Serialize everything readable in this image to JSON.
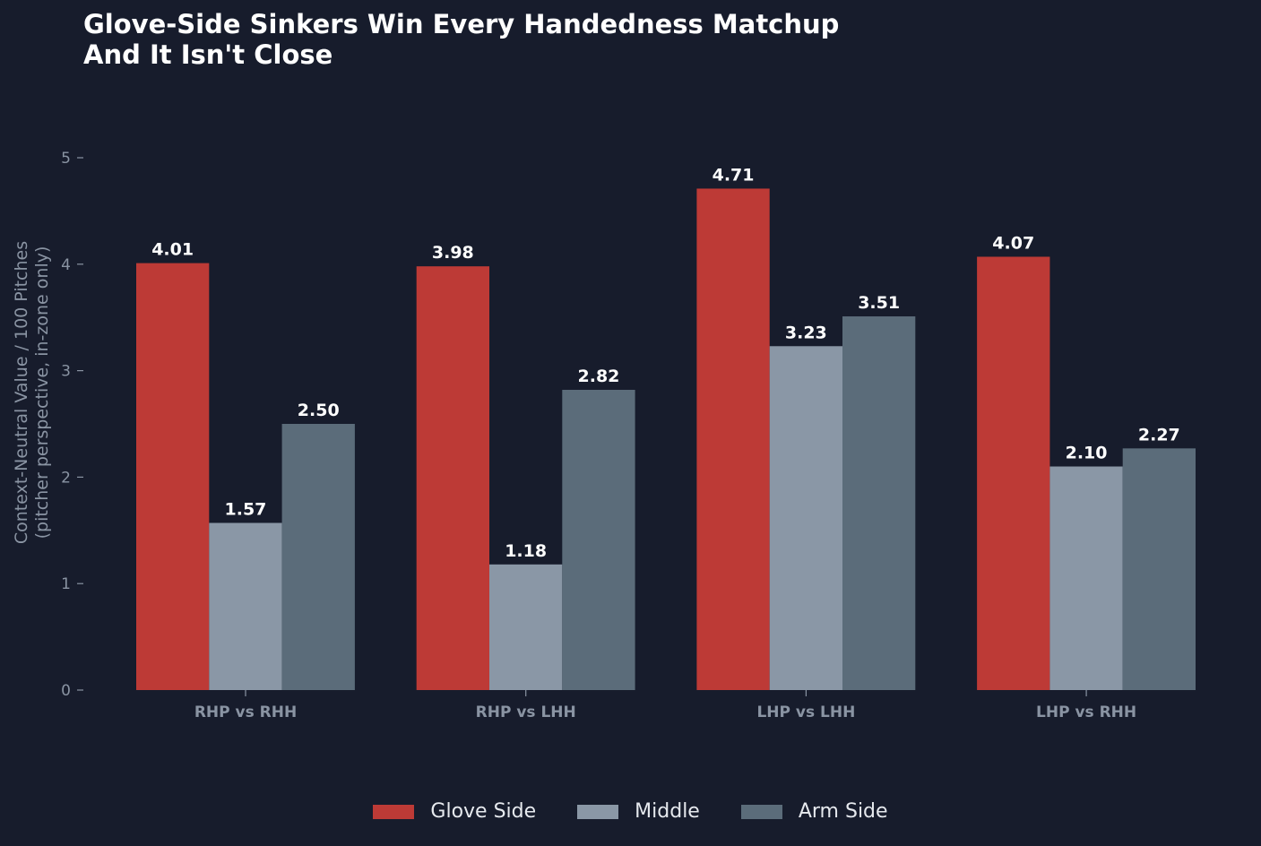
{
  "chart_data": {
    "type": "bar",
    "title_lines": [
      "Glove-Side Sinkers Win Every Handedness Matchup",
      "And It Isn't Close"
    ],
    "ylabel_lines": [
      "Context-Neutral Value / 100 Pitches",
      "(pitcher perspective, in-zone only)"
    ],
    "xlabel": "",
    "categories": [
      "RHP vs RHH",
      "RHP vs LHH",
      "LHP vs LHH",
      "LHP vs RHH"
    ],
    "series": [
      {
        "name": "Glove Side",
        "color": "#bd3a36",
        "values": [
          4.01,
          3.98,
          4.71,
          4.07
        ]
      },
      {
        "name": "Middle",
        "color": "#8a97a6",
        "values": [
          1.57,
          1.18,
          3.23,
          2.1
        ]
      },
      {
        "name": "Arm Side",
        "color": "#5b6c7a",
        "values": [
          2.5,
          2.82,
          3.51,
          2.27
        ]
      }
    ],
    "ylim": [
      0,
      5.3
    ],
    "yticks": [
      0,
      1,
      2,
      3,
      4,
      5
    ],
    "value_labels": true,
    "value_format_decimals": 2,
    "grid": false,
    "legend_position": "bottom-center"
  }
}
